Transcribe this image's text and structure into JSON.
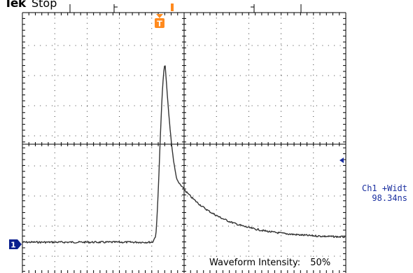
{
  "header": {
    "brand": "Tek",
    "run_state": "Stop"
  },
  "trigger": {
    "marker_label": "T",
    "color": "#ff8a1e"
  },
  "channel": {
    "marker_label": "1",
    "color": "#0a1f8f"
  },
  "measurement": {
    "label": "Ch1 +Widt",
    "value": "98.34ns",
    "color": "#1a2fa0"
  },
  "display": {
    "intensity_label": "Waveform Intensity:",
    "intensity_value": "50%"
  },
  "colors": {
    "grid": "#000000",
    "trace": "#333333",
    "background": "#ffffff"
  }
}
